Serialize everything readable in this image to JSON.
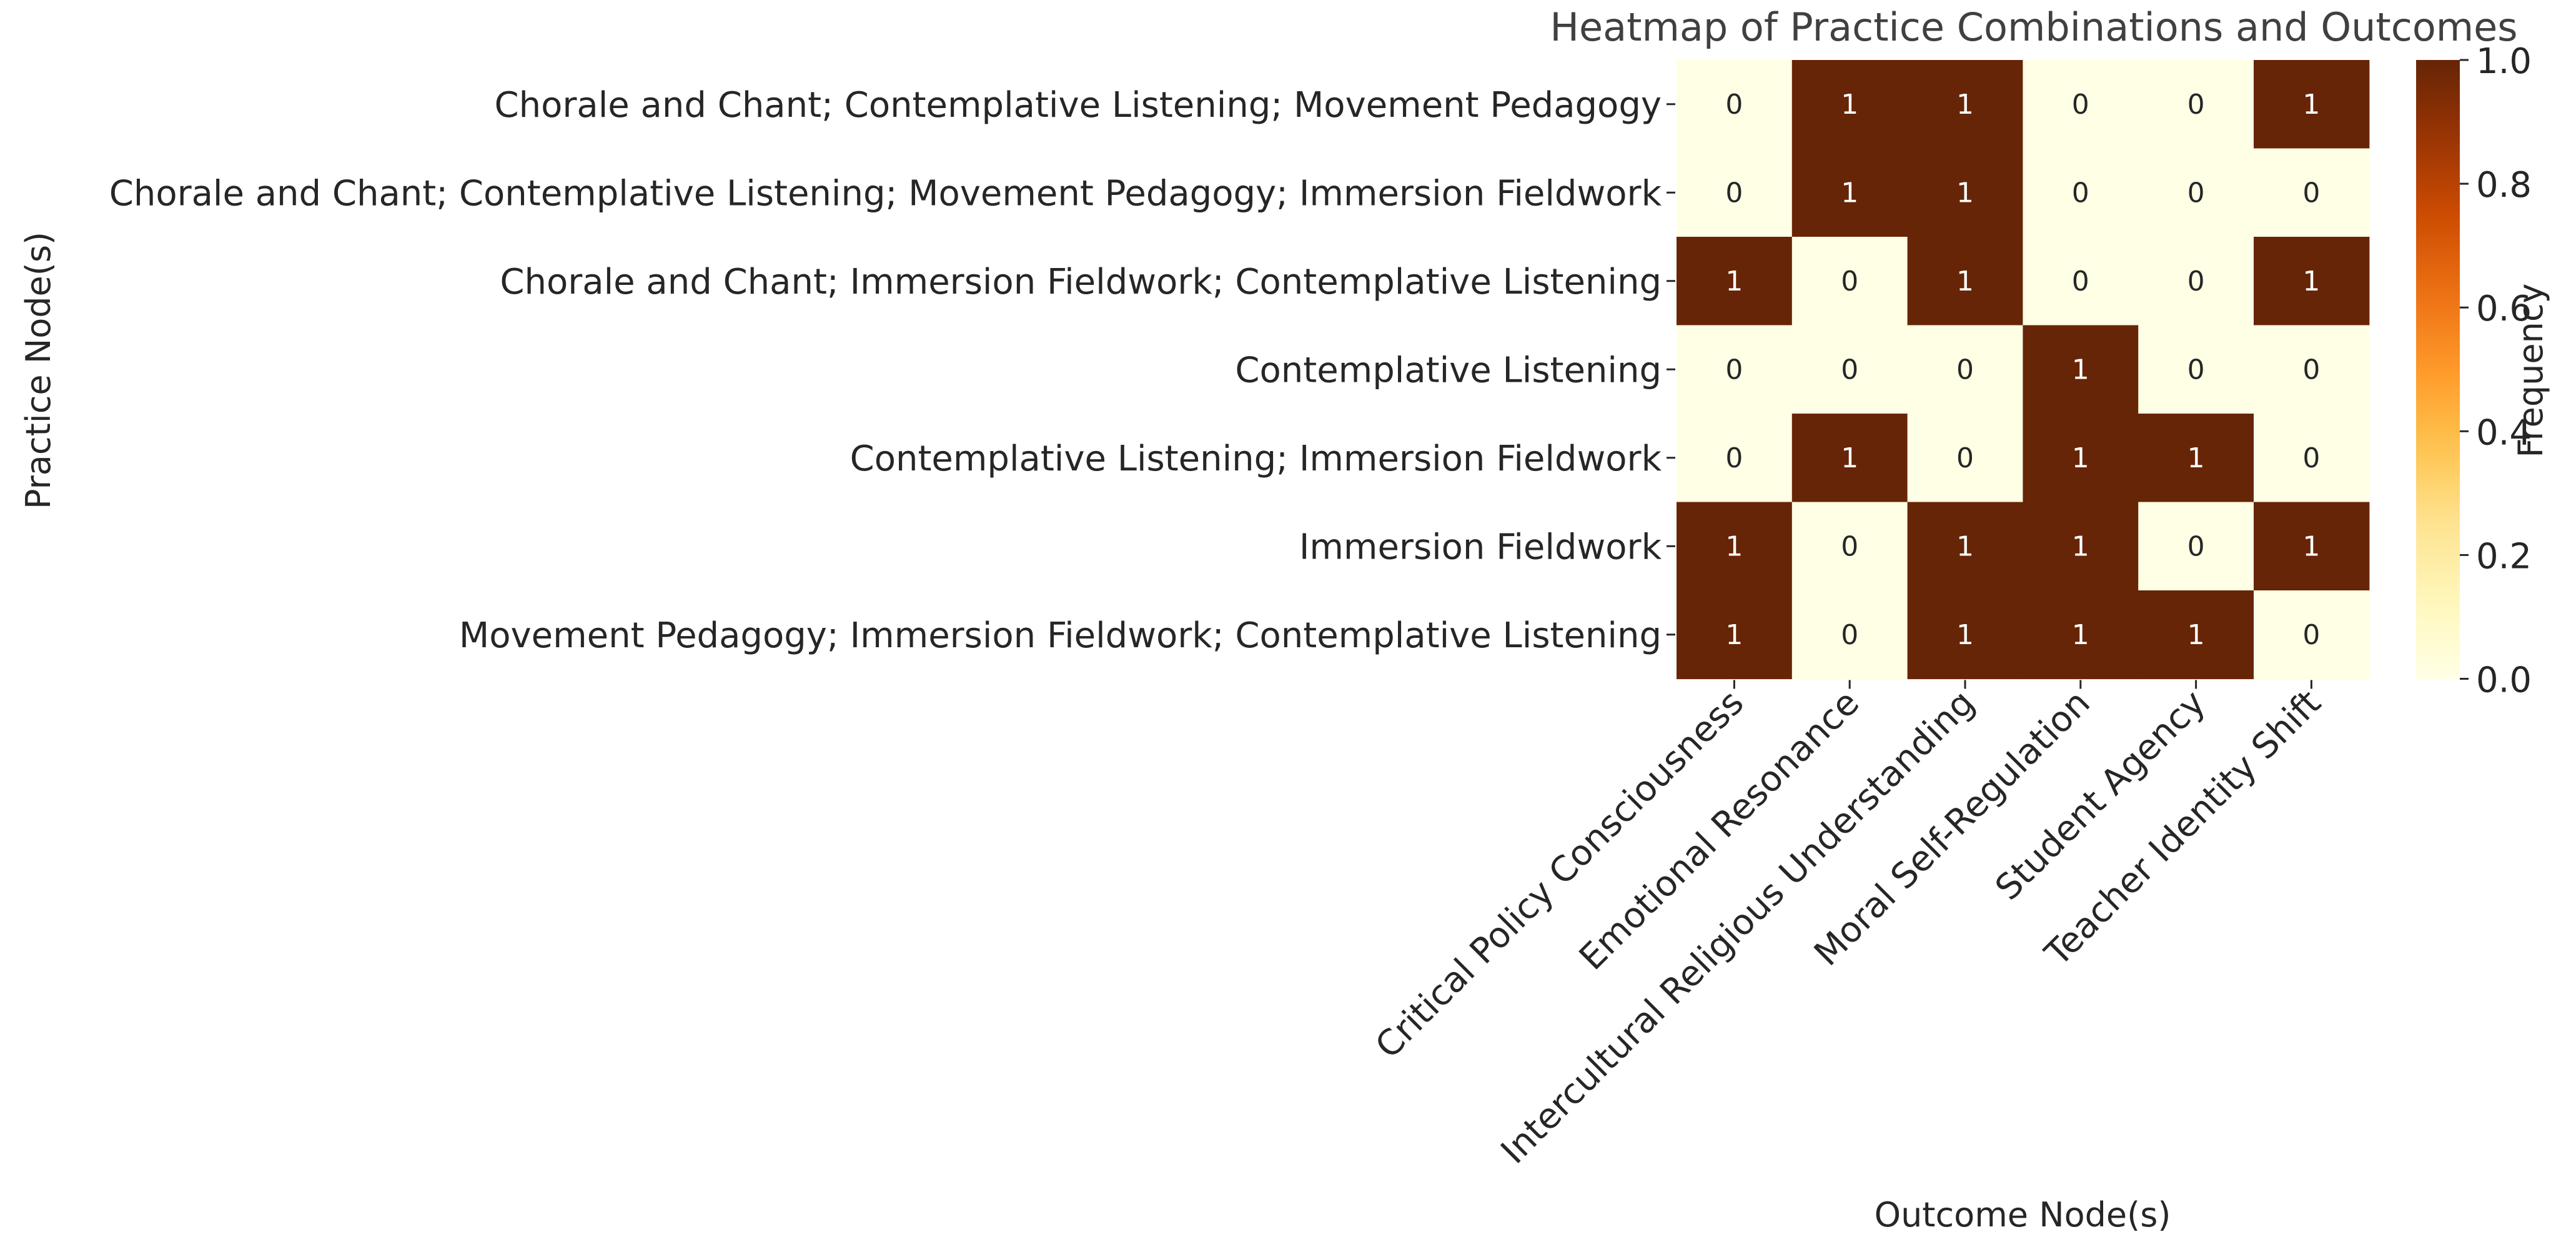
{
  "chart_data": {
    "type": "heatmap",
    "title": "Heatmap of Practice Combinations and Outcomes",
    "xlabel": "Outcome Node(s)",
    "ylabel": "Practice Node(s)",
    "x_categories": [
      "Critical Policy Consciousness",
      "Emotional Resonance",
      "Intercultural Religious Understanding",
      "Moral Self-Regulation",
      "Student Agency",
      "Teacher Identity Shift"
    ],
    "y_categories": [
      "Chorale and Chant; Contemplative Listening; Movement Pedagogy",
      "Chorale and Chant; Contemplative Listening; Movement Pedagogy; Immersion Fieldwork",
      "Chorale and Chant; Immersion Fieldwork; Contemplative Listening",
      "Contemplative Listening",
      "Contemplative Listening; Immersion Fieldwork",
      "Immersion Fieldwork",
      "Movement Pedagogy; Immersion Fieldwork; Contemplative Listening"
    ],
    "values": [
      [
        0,
        1,
        1,
        0,
        0,
        1
      ],
      [
        0,
        1,
        1,
        0,
        0,
        0
      ],
      [
        1,
        0,
        1,
        0,
        0,
        1
      ],
      [
        0,
        0,
        0,
        1,
        0,
        0
      ],
      [
        0,
        1,
        0,
        1,
        1,
        0
      ],
      [
        1,
        0,
        1,
        1,
        0,
        1
      ],
      [
        1,
        0,
        1,
        1,
        1,
        0
      ]
    ],
    "value_range": [
      0,
      1
    ],
    "colorbar": {
      "label": "Frequency",
      "ticks": [
        "0.0",
        "0.2",
        "0.4",
        "0.6",
        "0.8",
        "1.0"
      ]
    },
    "colors": {
      "low": "#FFFFE5",
      "high": "#662506",
      "annotation_on_low": "#262626",
      "annotation_on_high": "#ffffff"
    }
  }
}
